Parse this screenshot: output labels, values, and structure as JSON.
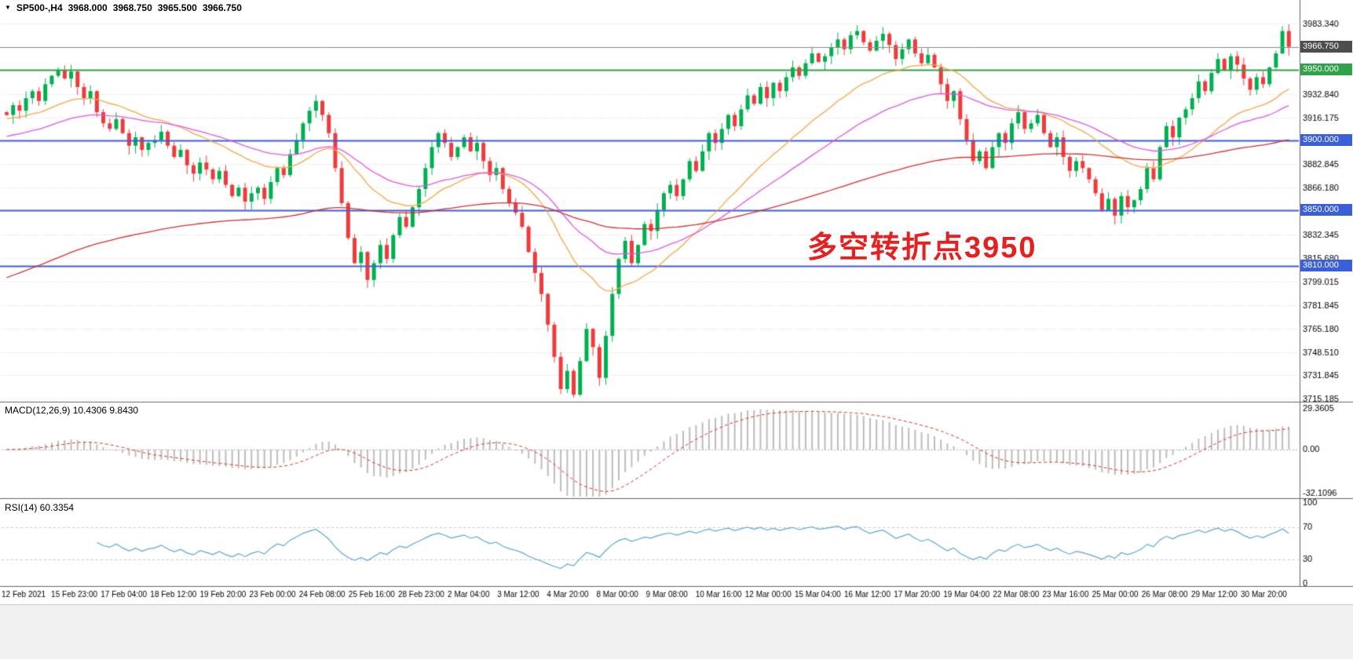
{
  "quote": {
    "icon": "▼",
    "symbol": "SP500-,H4",
    "open": "3968.000",
    "high": "3968.750",
    "low": "3965.500",
    "close": "3966.750"
  },
  "annotation": {
    "text": "多空转折点3950",
    "color": "#e62020"
  },
  "indicators": {
    "macd": {
      "label": "MACD(12,26,9) 10.4306 9.8430",
      "axis_labels": [
        {
          "text": "29.3605",
          "value": 29.3605
        },
        {
          "text": "0.00",
          "value": 0
        },
        {
          "text": "-32.1096",
          "value": -32.1096
        }
      ],
      "histogram_color": "#bdbdbd",
      "signal_color": "#e03030"
    },
    "rsi": {
      "label": "RSI(14) 60.3354",
      "axis_labels": [
        {
          "text": "100",
          "value": 100
        },
        {
          "text": "70",
          "value": 70
        },
        {
          "text": "30",
          "value": 30
        },
        {
          "text": "0",
          "value": 0
        }
      ],
      "line_color": "#59a7d9",
      "levels": [
        70,
        30
      ]
    }
  },
  "price_axis": {
    "labels": [
      {
        "text": "3983.340",
        "price": 3983.34
      },
      {
        "text": "3932.840",
        "price": 3932.84
      },
      {
        "text": "3916.175",
        "price": 3916.175
      },
      {
        "text": "3882.845",
        "price": 3882.845
      },
      {
        "text": "3866.180",
        "price": 3866.18
      },
      {
        "text": "3832.345",
        "price": 3832.345
      },
      {
        "text": "3815.680",
        "price": 3815.68
      },
      {
        "text": "3799.015",
        "price": 3799.015
      },
      {
        "text": "3781.845",
        "price": 3781.845
      },
      {
        "text": "3765.180",
        "price": 3765.18
      },
      {
        "text": "3748.510",
        "price": 3748.51
      },
      {
        "text": "3731.845",
        "price": 3731.845
      },
      {
        "text": "3715.185",
        "price": 3715.185
      }
    ],
    "badges": [
      {
        "text": "3966.750",
        "price": 3966.75,
        "bg": "#4d4d4d",
        "role": "bid-price"
      },
      {
        "text": "3950.000",
        "price": 3950.0,
        "bg": "#2fa24a",
        "role": "level"
      },
      {
        "text": "3900.000",
        "price": 3900.0,
        "bg": "#3a5fd9",
        "role": "level"
      },
      {
        "text": "3850.000",
        "price": 3850.0,
        "bg": "#3a5fd9",
        "role": "level"
      },
      {
        "text": "3810.000",
        "price": 3810.0,
        "bg": "#3a5fd9",
        "role": "level"
      }
    ]
  },
  "time_axis": {
    "labels": [
      "12 Feb 2021",
      "15 Feb 23:00",
      "17 Feb 04:00",
      "18 Feb 12:00",
      "19 Feb 20:00",
      "23 Feb 00:00",
      "24 Feb 08:00",
      "25 Feb 16:00",
      "28 Feb 23:00",
      "2 Mar 04:00",
      "3 Mar 12:00",
      "4 Mar 20:00",
      "8 Mar 00:00",
      "9 Mar 08:00",
      "10 Mar 16:00",
      "12 Mar 00:00",
      "15 Mar 04:00",
      "16 Mar 12:00",
      "17 Mar 20:00",
      "19 Mar 04:00",
      "22 Mar 08:00",
      "23 Mar 16:00",
      "25 Mar 00:00",
      "26 Mar 08:00",
      "29 Mar 12:00",
      "30 Mar 20:00"
    ]
  },
  "chart_data": {
    "type": "candlestick",
    "symbol": "SP500-",
    "timeframe": "H4",
    "ohlc_display": {
      "open": 3968.0,
      "high": 3968.75,
      "low": 3965.5,
      "close": 3966.75
    },
    "y_range": [
      3715.185,
      3983.34
    ],
    "up_color": "#00b050",
    "down_color": "#ee3b3b",
    "open_first": 3920,
    "closes": [
      3918,
      3925,
      3921,
      3930,
      3935,
      3928,
      3940,
      3946,
      3950,
      3944,
      3949,
      3938,
      3930,
      3935,
      3920,
      3912,
      3908,
      3915,
      3905,
      3896,
      3902,
      3893,
      3898,
      3900,
      3906,
      3896,
      3888,
      3893,
      3882,
      3876,
      3884,
      3879,
      3872,
      3878,
      3868,
      3860,
      3866,
      3856,
      3862,
      3866,
      3858,
      3870,
      3880,
      3875,
      3890,
      3900,
      3912,
      3921,
      3928,
      3918,
      3905,
      3880,
      3855,
      3830,
      3812,
      3820,
      3800,
      3812,
      3825,
      3815,
      3832,
      3845,
      3838,
      3852,
      3865,
      3880,
      3895,
      3905,
      3898,
      3888,
      3895,
      3902,
      3892,
      3898,
      3885,
      3875,
      3880,
      3865,
      3855,
      3848,
      3838,
      3820,
      3805,
      3790,
      3768,
      3745,
      3722,
      3735,
      3718,
      3742,
      3765,
      3752,
      3730,
      3760,
      3790,
      3815,
      3828,
      3812,
      3825,
      3840,
      3835,
      3850,
      3862,
      3868,
      3860,
      3872,
      3885,
      3878,
      3892,
      3905,
      3898,
      3908,
      3918,
      3910,
      3922,
      3932,
      3926,
      3938,
      3930,
      3941,
      3935,
      3945,
      3952,
      3946,
      3955,
      3962,
      3956,
      3960,
      3966,
      3972,
      3965,
      3975,
      3978,
      3970,
      3964,
      3971,
      3976,
      3968,
      3958,
      3965,
      3972,
      3962,
      3955,
      3961,
      3952,
      3940,
      3928,
      3935,
      3915,
      3900,
      3885,
      3892,
      3880,
      3895,
      3905,
      3898,
      3912,
      3920,
      3908,
      3912,
      3918,
      3905,
      3895,
      3902,
      3888,
      3878,
      3885,
      3880,
      3872,
      3862,
      3850,
      3858,
      3846,
      3860,
      3852,
      3857,
      3865,
      3880,
      3872,
      3895,
      3910,
      3902,
      3916,
      3922,
      3930,
      3942,
      3935,
      3948,
      3958,
      3950,
      3960,
      3954,
      3944,
      3936,
      3945,
      3940,
      3952,
      3962,
      3978,
      3966.75
    ],
    "moving_averages": [
      {
        "name": "fast",
        "period": 24,
        "color": "#f5a742",
        "seed": 3915
      },
      {
        "name": "medium",
        "period": 44,
        "color": "#e156e1",
        "seed": 3902
      },
      {
        "name": "slow",
        "period": 140,
        "color": "#d63031",
        "seed": 3800
      }
    ],
    "levels": [
      {
        "price": 3950.0,
        "color": "#2fa24a",
        "width": 2,
        "role": "horizontal-line"
      },
      {
        "price": 3900.0,
        "color": "#3a5fd9",
        "width": 2,
        "role": "horizontal-line"
      },
      {
        "price": 3850.0,
        "color": "#3a5fd9",
        "width": 2,
        "role": "horizontal-line"
      },
      {
        "price": 3810.0,
        "color": "#3a5fd9",
        "width": 2,
        "role": "horizontal-line"
      },
      {
        "price": 3966.75,
        "color": "#8c8c8c",
        "width": 1,
        "role": "bid-line"
      }
    ],
    "panels": [
      {
        "name": "MACD(12,26,9)",
        "range": [
          -32.1096,
          29.3605
        ]
      },
      {
        "name": "RSI(14)",
        "range": [
          0,
          100
        ]
      }
    ]
  }
}
